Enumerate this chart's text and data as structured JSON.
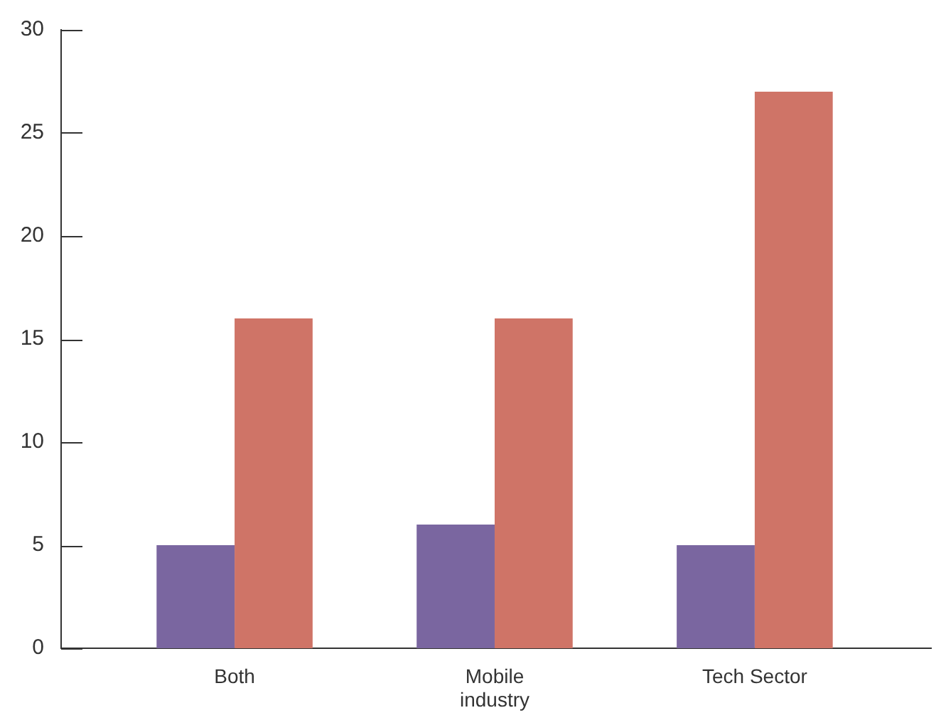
{
  "chart_data": {
    "type": "bar",
    "categories": [
      "Both",
      "Mobile industry",
      "Tech Sector"
    ],
    "series": [
      {
        "color": "#7a66a0",
        "values": [
          5,
          6,
          5
        ]
      },
      {
        "color": "#cf7467",
        "values": [
          16,
          16,
          27
        ]
      }
    ],
    "ylim": [
      0,
      30
    ],
    "yticks": [
      0,
      5,
      10,
      15,
      20,
      25,
      30
    ]
  }
}
